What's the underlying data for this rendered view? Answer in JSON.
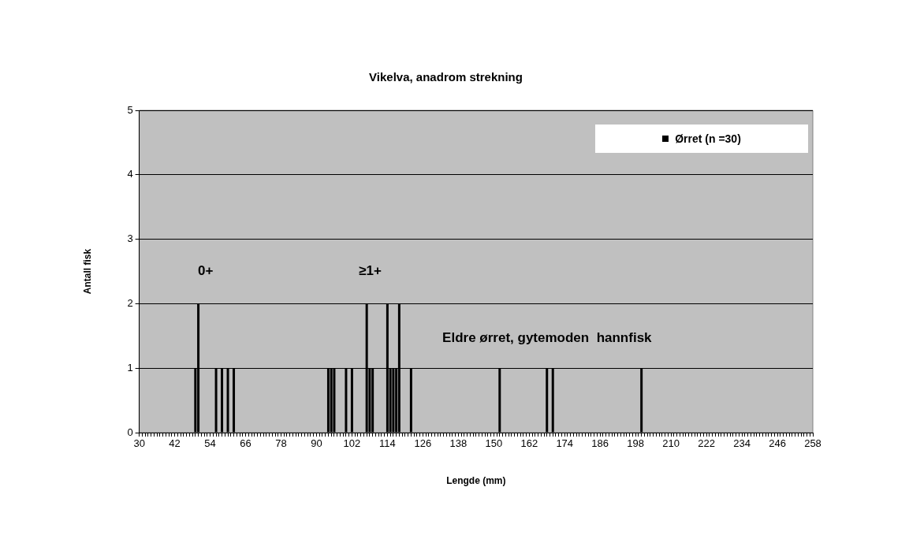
{
  "chart_data": {
    "type": "bar",
    "title": "Vikelva, anadrom strekning",
    "xlabel": "Lengde (mm)",
    "ylabel": "Antall fisk",
    "categories": [
      "30",
      null,
      null,
      null,
      null,
      null,
      null,
      null,
      null,
      null,
      null,
      null,
      "42",
      null,
      null,
      null,
      null,
      null,
      null,
      null,
      null,
      null,
      null,
      null,
      "54",
      null,
      null,
      null,
      null,
      null,
      null,
      null,
      null,
      null,
      null,
      null,
      "66",
      null,
      null,
      null,
      null,
      null,
      null,
      null,
      null,
      null,
      null,
      null,
      "78",
      null,
      null,
      null,
      null,
      null,
      null,
      null,
      null,
      null,
      null,
      null,
      "90",
      null,
      null,
      null,
      null,
      null,
      null,
      null,
      null,
      null,
      null,
      null,
      "102",
      null,
      null,
      null,
      null,
      null,
      null,
      null,
      null,
      null,
      null,
      null,
      "114",
      null,
      null,
      null,
      null,
      null,
      null,
      null,
      null,
      null,
      null,
      null,
      "126",
      null,
      null,
      null,
      null,
      null,
      null,
      null,
      null,
      null,
      null,
      null,
      "138",
      null,
      null,
      null,
      null,
      null,
      null,
      null,
      null,
      null,
      null,
      null,
      "150",
      null,
      null,
      null,
      null,
      null,
      null,
      null,
      null,
      null,
      null,
      null,
      "162",
      null,
      null,
      null,
      null,
      null,
      null,
      null,
      null,
      null,
      null,
      null,
      "174",
      null,
      null,
      null,
      null,
      null,
      null,
      null,
      null,
      null,
      null,
      null,
      "186",
      null,
      null,
      null,
      null,
      null,
      null,
      null,
      null,
      null,
      null,
      null,
      "198",
      null,
      null,
      null,
      null,
      null,
      null,
      null,
      null,
      null,
      null,
      null,
      "210",
      null,
      null,
      null,
      null,
      null,
      null,
      null,
      null,
      null,
      null,
      null,
      "222",
      null,
      null,
      null,
      null,
      null,
      null,
      null,
      null,
      null,
      null,
      null,
      "234",
      null,
      null,
      null,
      null,
      null,
      null,
      null,
      null,
      null,
      null,
      null,
      "246",
      null,
      null,
      null,
      null,
      null,
      null,
      null,
      null,
      null,
      null,
      null,
      "258"
    ],
    "series": [
      {
        "name": "Ørret (n =30)",
        "color": "#000000",
        "values": [
          0,
          0,
          0,
          0,
          0,
          0,
          0,
          0,
          0,
          0,
          0,
          0,
          0,
          0,
          0,
          0,
          0,
          0,
          0,
          1,
          2,
          0,
          0,
          0,
          0,
          0,
          1,
          0,
          1,
          0,
          1,
          0,
          1,
          0,
          0,
          0,
          0,
          0,
          0,
          0,
          0,
          0,
          0,
          0,
          0,
          0,
          0,
          0,
          0,
          0,
          0,
          0,
          0,
          0,
          0,
          0,
          0,
          0,
          0,
          0,
          0,
          0,
          0,
          0,
          1,
          1,
          1,
          0,
          0,
          0,
          1,
          0,
          1,
          0,
          0,
          0,
          0,
          2,
          1,
          1,
          0,
          0,
          0,
          0,
          2,
          1,
          1,
          1,
          2,
          0,
          0,
          0,
          1,
          0,
          0,
          0,
          0,
          0,
          0,
          0,
          0,
          0,
          0,
          0,
          0,
          0,
          0,
          0,
          0,
          0,
          0,
          0,
          0,
          0,
          0,
          0,
          0,
          0,
          0,
          0,
          0,
          0,
          1,
          0,
          0,
          0,
          0,
          0,
          0,
          0,
          0,
          0,
          0,
          0,
          0,
          0,
          0,
          0,
          1,
          0,
          1,
          0,
          0,
          0,
          0,
          0,
          0,
          0,
          0,
          0,
          0,
          0,
          0,
          0,
          0,
          0,
          0,
          0,
          0,
          0,
          0,
          0,
          0,
          0,
          0,
          0,
          0,
          0,
          0,
          0,
          1,
          0,
          0,
          0,
          0,
          0,
          0,
          0,
          0,
          0,
          0,
          0,
          0,
          0,
          0,
          0,
          0,
          0,
          0,
          0,
          0,
          0,
          0,
          0,
          0,
          0,
          0,
          0,
          0,
          0,
          0,
          0,
          0,
          0,
          0,
          0,
          0,
          0,
          0,
          0,
          0,
          0,
          0,
          0,
          0,
          0,
          0,
          0,
          0,
          0,
          0,
          0,
          0,
          0,
          0,
          0,
          0,
          0,
          0
        ]
      }
    ],
    "ylim": [
      0,
      5
    ],
    "yticks": [
      0,
      1,
      2,
      3,
      4,
      5
    ],
    "grid": "y",
    "legend": "top right",
    "annotations": [
      "0+",
      "≥1+",
      "Eldre ørret, gytemoden  hannfisk"
    ]
  }
}
